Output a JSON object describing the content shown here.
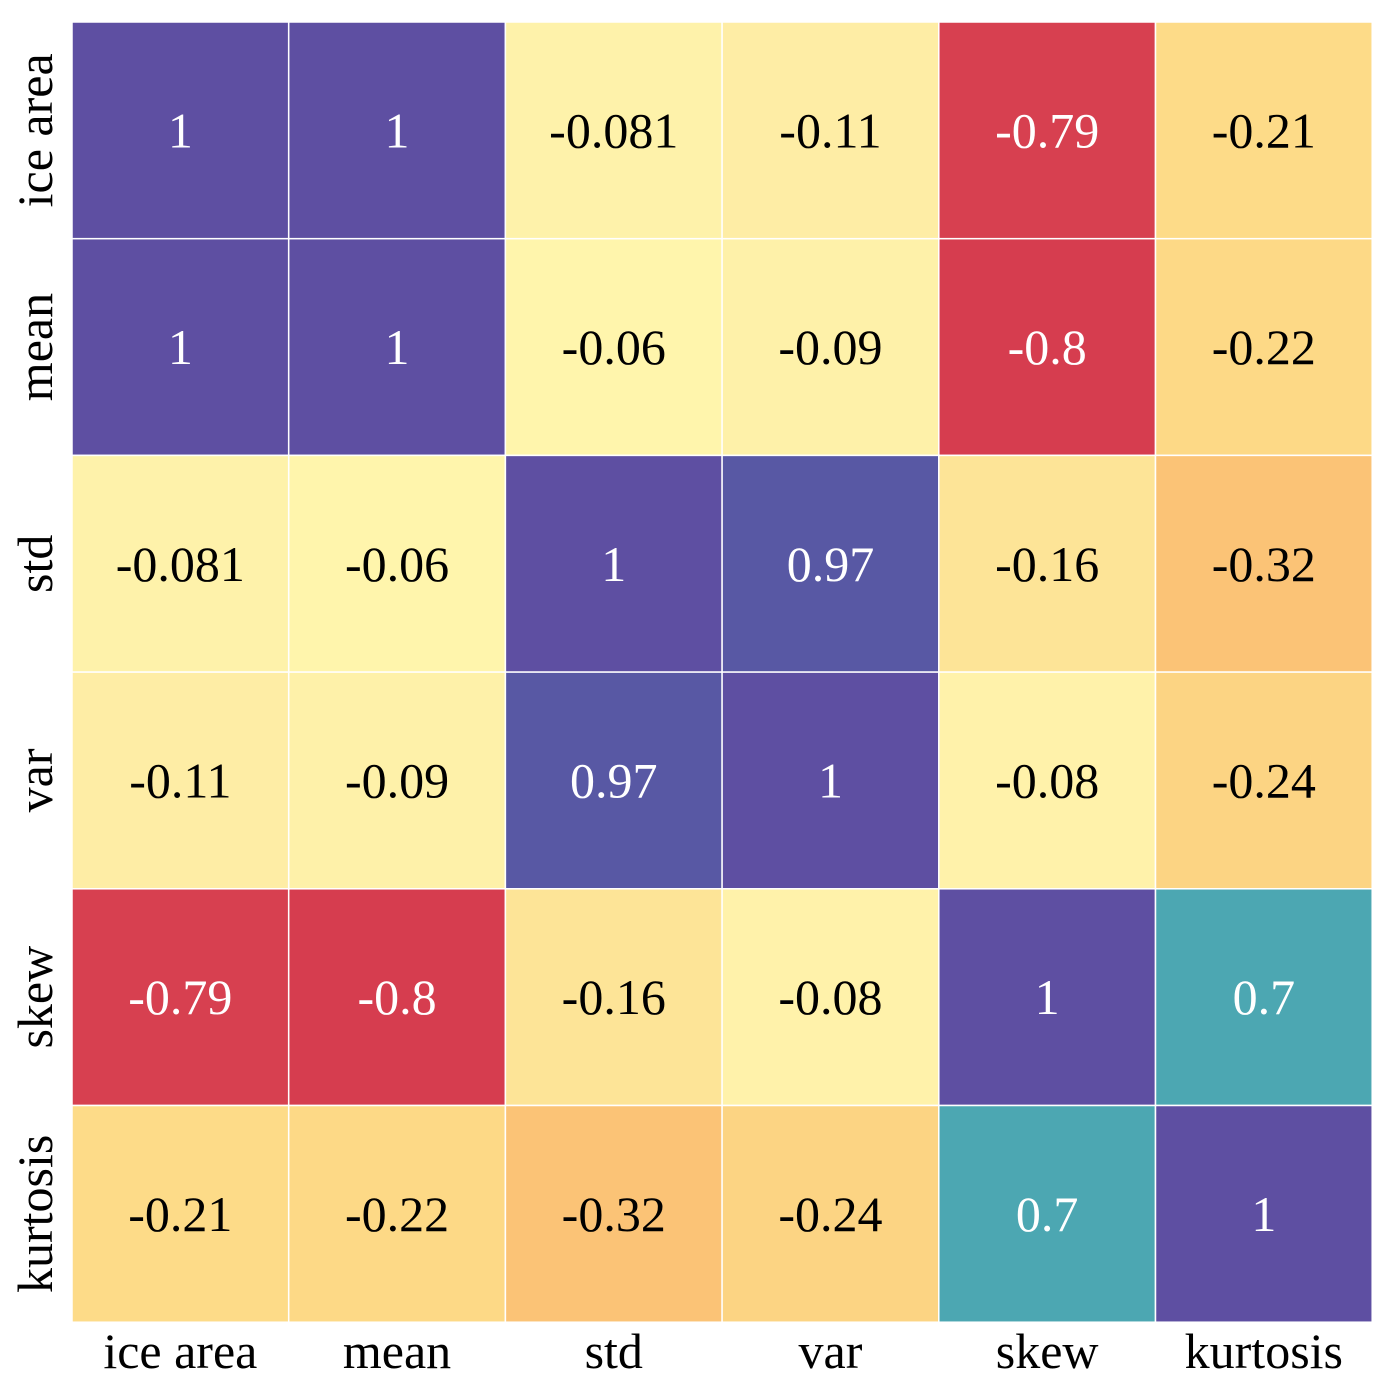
{
  "chart_data": {
    "type": "heatmap",
    "title": "",
    "xlabel": "",
    "ylabel": "",
    "x_labels": [
      "ice area",
      "mean",
      "std",
      "var",
      "skew",
      "kurtosis"
    ],
    "y_labels": [
      "ice area",
      "mean",
      "std",
      "var",
      "skew",
      "kurtosis"
    ],
    "values": [
      [
        1,
        1,
        -0.081,
        -0.11,
        -0.79,
        -0.21
      ],
      [
        1,
        1,
        -0.06,
        -0.09,
        -0.8,
        -0.22
      ],
      [
        -0.081,
        -0.06,
        1,
        0.97,
        -0.16,
        -0.32
      ],
      [
        -0.11,
        -0.09,
        0.97,
        1,
        -0.08,
        -0.24
      ],
      [
        -0.79,
        -0.8,
        -0.16,
        -0.08,
        1,
        0.7
      ],
      [
        -0.21,
        -0.22,
        -0.32,
        -0.24,
        0.7,
        1
      ]
    ],
    "annotations": [
      [
        "1",
        "1",
        "-0.081",
        "-0.11",
        "-0.79",
        "-0.21"
      ],
      [
        "1",
        "1",
        "-0.06",
        "-0.09",
        "-0.8",
        "-0.22"
      ],
      [
        "-0.081",
        "-0.06",
        "1",
        "0.97",
        "-0.16",
        "-0.32"
      ],
      [
        "-0.11",
        "-0.09",
        "0.97",
        "1",
        "-0.08",
        "-0.24"
      ],
      [
        "-0.79",
        "-0.8",
        "-0.16",
        "-0.08",
        "1",
        "0.7"
      ],
      [
        "-0.21",
        "-0.22",
        "-0.32",
        "-0.24",
        "0.7",
        "1"
      ]
    ],
    "colormap": "Spectral",
    "vmin": -0.8,
    "vmax": 1,
    "colors": {
      "cell_border": "#ffffff",
      "text_dark": "#000000",
      "text_light": "#ffffff"
    }
  }
}
